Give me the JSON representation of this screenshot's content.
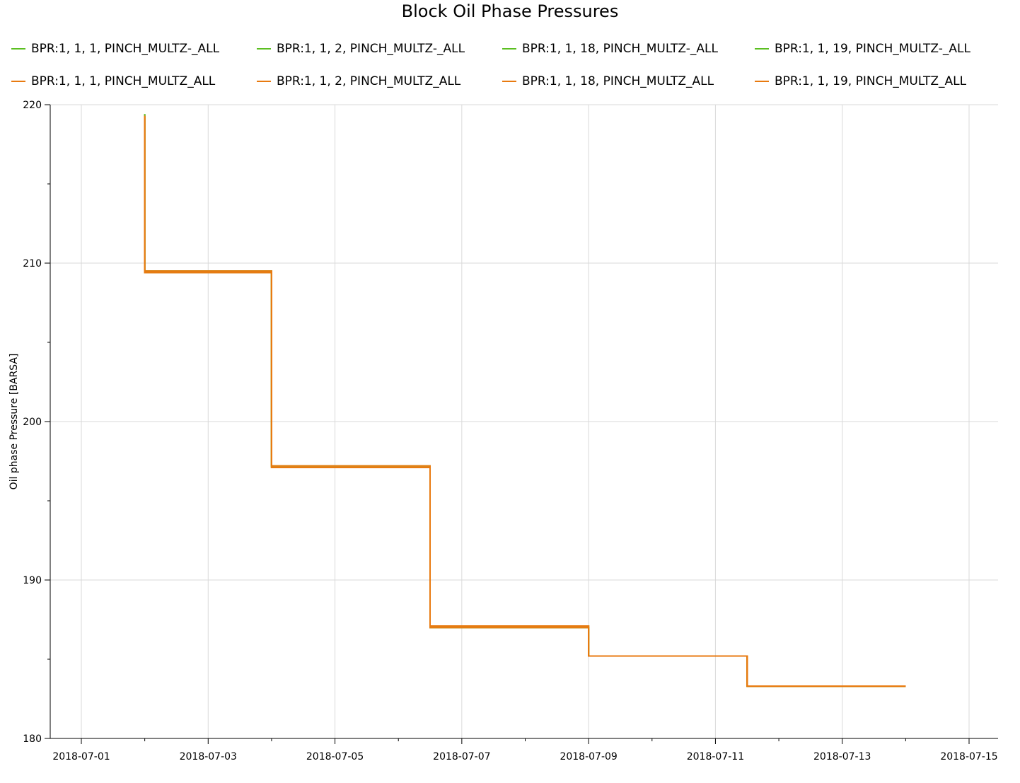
{
  "chart_data": {
    "type": "line",
    "step": true,
    "title": "Block Oil Phase Pressures",
    "xlabel": "",
    "ylabel": "Oil phase Pressure [BARSA]",
    "xlim": [
      "2018-07-01",
      "2018-07-15"
    ],
    "ylim": [
      180,
      220
    ],
    "x_ticks": [
      "2018-07-01",
      "2018-07-03",
      "2018-07-05",
      "2018-07-07",
      "2018-07-09",
      "2018-07-11",
      "2018-07-13",
      "2018-07-15"
    ],
    "y_ticks": [
      180,
      190,
      200,
      210,
      220
    ],
    "grid": true,
    "legend_position": "top",
    "x": [
      "2018-07-02",
      "2018-07-02",
      "2018-07-04",
      "2018-07-06 12:00",
      "2018-07-09",
      "2018-07-11 12:00",
      "2018-07-14"
    ],
    "series": [
      {
        "name": "BPR:1, 1, 1, PINCH_MULTZ-_ALL",
        "color": "#5bbf21",
        "values": [
          219.4,
          209.5,
          197.2,
          187.0,
          185.2,
          183.3,
          183.3
        ]
      },
      {
        "name": "BPR:1, 1, 2, PINCH_MULTZ-_ALL",
        "color": "#5bbf21",
        "values": [
          219.4,
          209.5,
          197.2,
          187.0,
          185.2,
          183.3,
          183.3
        ]
      },
      {
        "name": "BPR:1, 1, 18, PINCH_MULTZ-_ALL",
        "color": "#5bbf21",
        "values": [
          219.4,
          209.4,
          197.1,
          187.1,
          185.2,
          183.3,
          183.3
        ]
      },
      {
        "name": "BPR:1, 1, 19, PINCH_MULTZ-_ALL",
        "color": "#5bbf21",
        "values": [
          219.4,
          209.4,
          197.1,
          187.1,
          185.2,
          183.3,
          183.3
        ]
      },
      {
        "name": "BPR:1, 1, 1, PINCH_MULTZ_ALL",
        "color": "#e87a10",
        "values": [
          219.3,
          209.5,
          197.2,
          187.0,
          185.2,
          183.3,
          183.3
        ]
      },
      {
        "name": "BPR:1, 1, 2, PINCH_MULTZ_ALL",
        "color": "#e87a10",
        "values": [
          219.3,
          209.5,
          197.2,
          187.0,
          185.2,
          183.3,
          183.3
        ]
      },
      {
        "name": "BPR:1, 1, 18, PINCH_MULTZ_ALL",
        "color": "#e87a10",
        "values": [
          219.3,
          209.4,
          197.1,
          187.1,
          185.2,
          183.3,
          183.3
        ]
      },
      {
        "name": "BPR:1, 1, 19, PINCH_MULTZ_ALL",
        "color": "#e87a10",
        "values": [
          219.3,
          209.4,
          197.1,
          187.1,
          185.2,
          183.3,
          183.3
        ]
      }
    ]
  }
}
